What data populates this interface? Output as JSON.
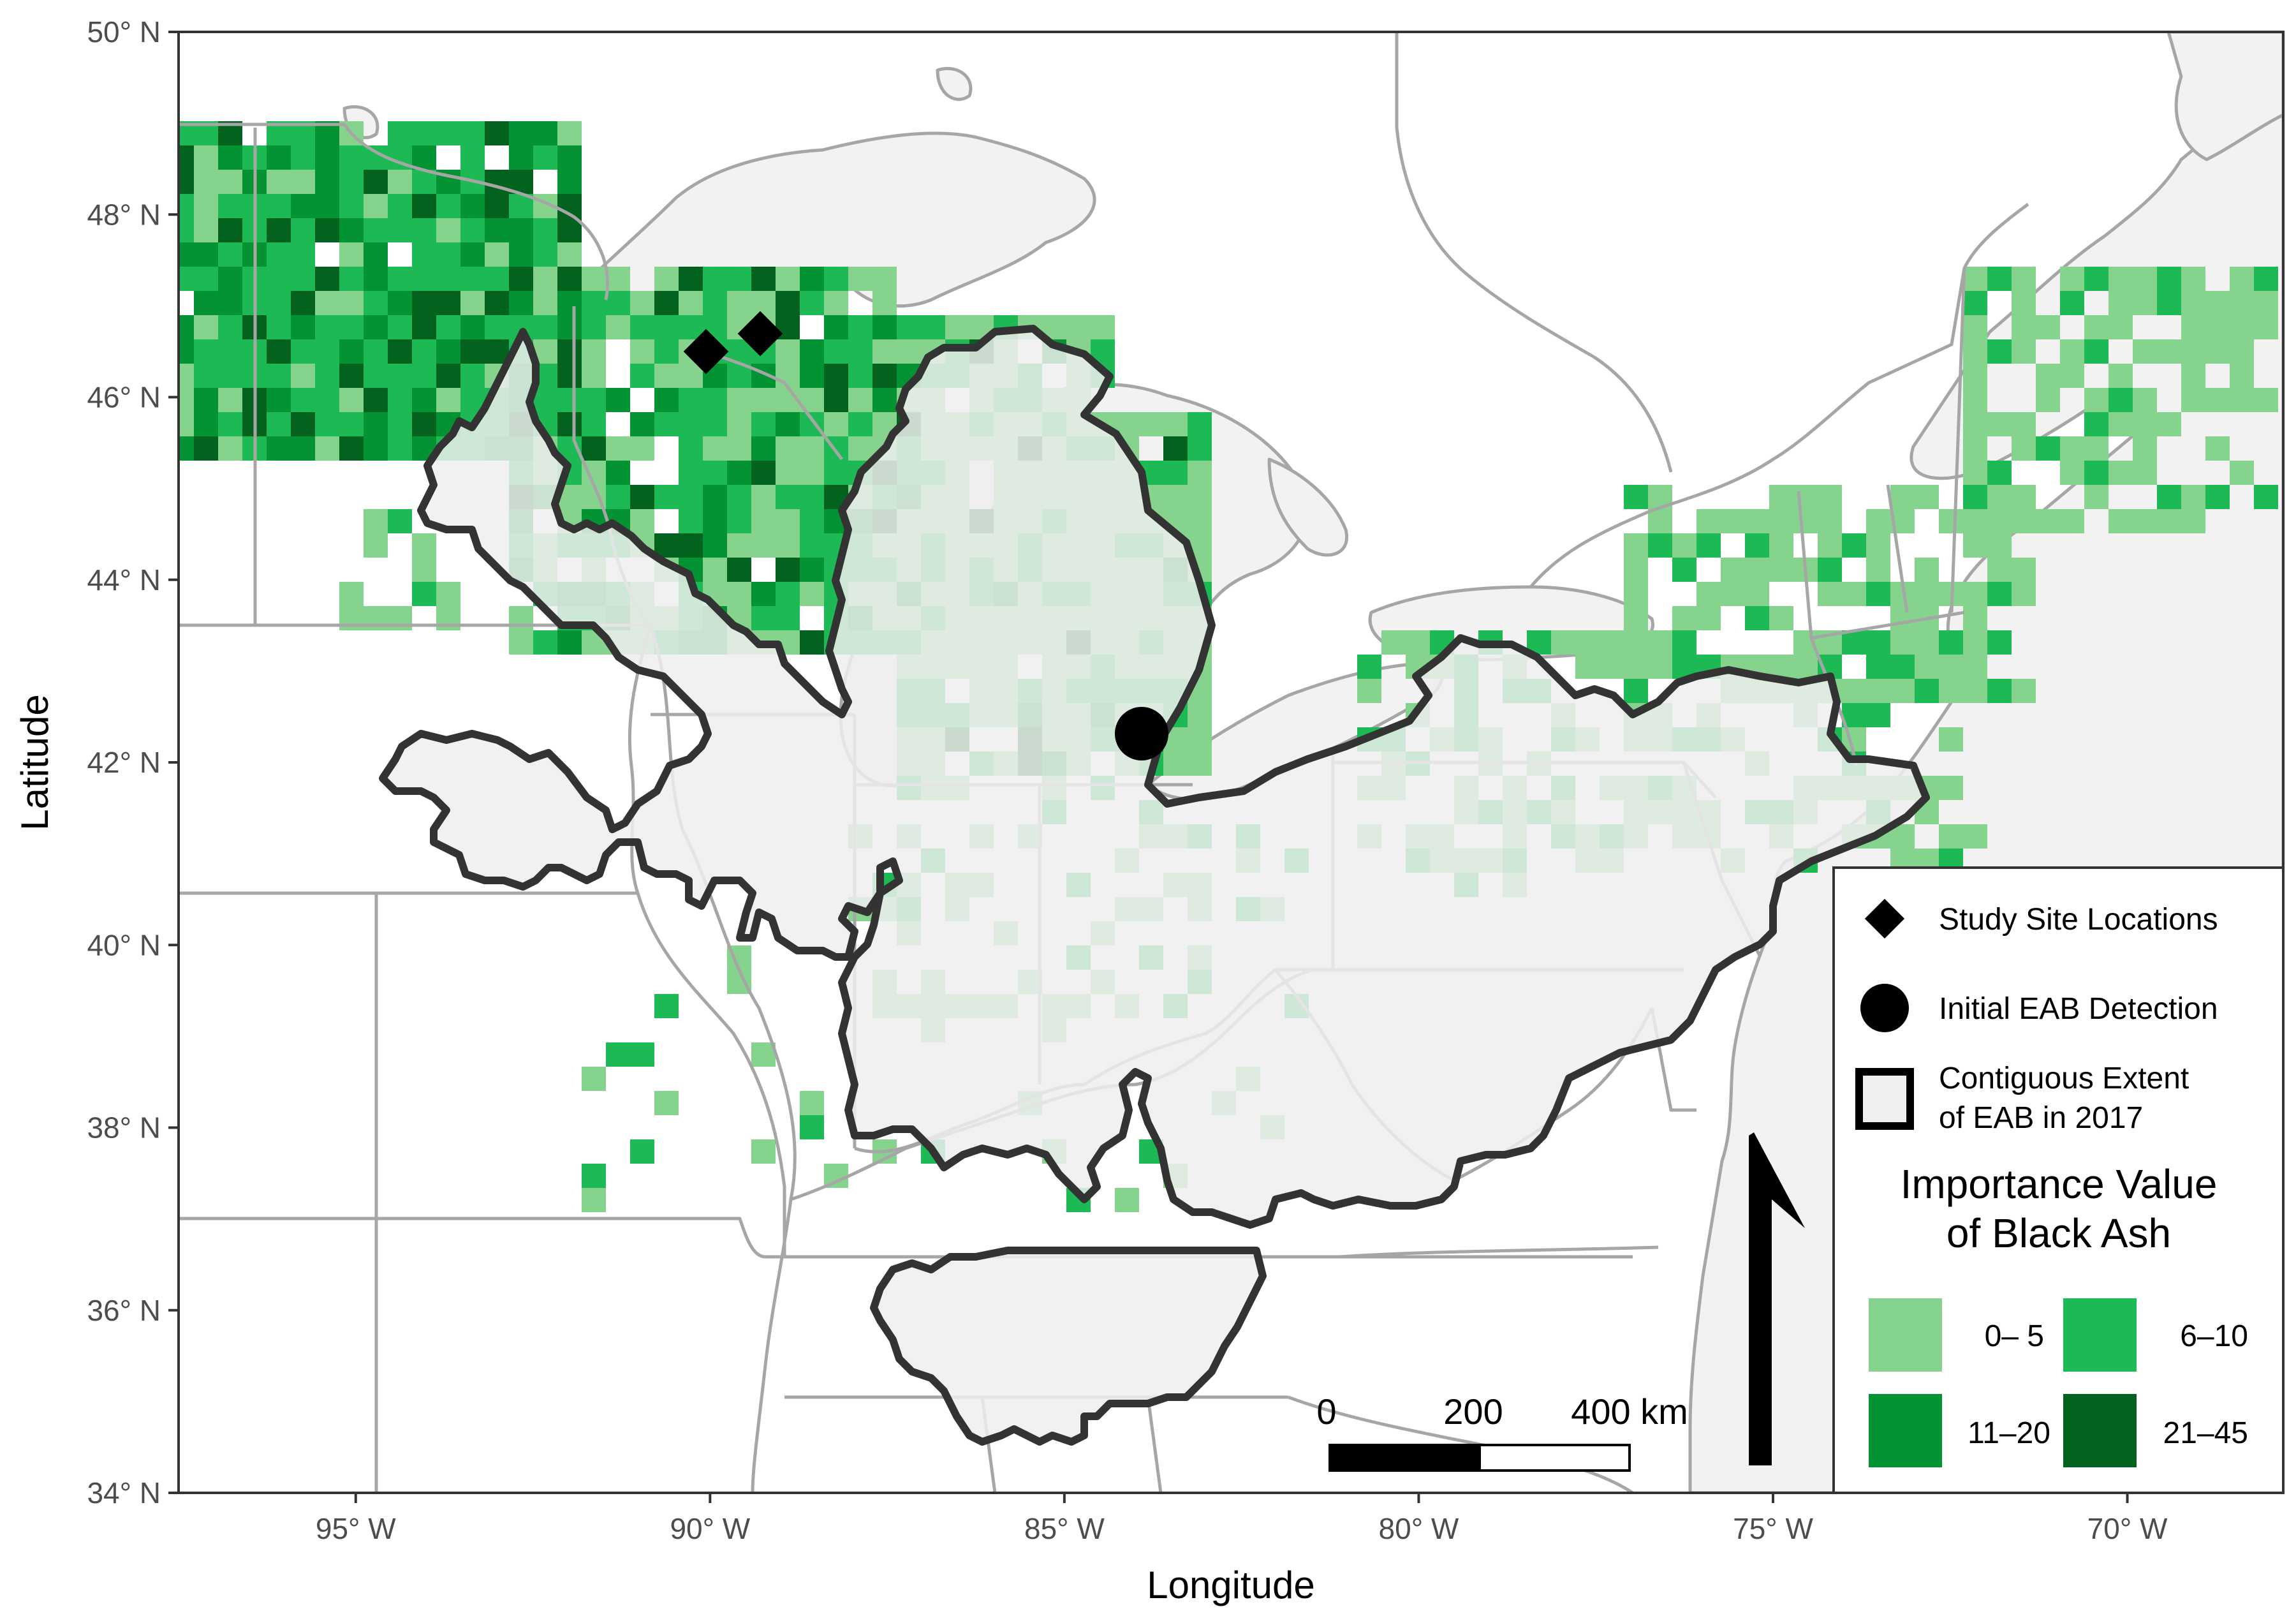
{
  "axes": {
    "x_title": "Longitude",
    "y_title": "Latitude",
    "x_ticks": [
      "95° W",
      "90° W",
      "85° W",
      "80° W",
      "75° W",
      "70° W"
    ],
    "y_ticks": [
      "50° N",
      "48° N",
      "46° N",
      "44° N",
      "42° N",
      "40° N",
      "38° N",
      "36° N",
      "34° N"
    ],
    "x_values": [
      -95,
      -90,
      -85,
      -80,
      -75,
      -70
    ],
    "y_values": [
      50,
      48,
      46,
      44,
      42,
      40,
      38,
      36,
      34
    ],
    "xlim": [
      -97.5,
      -67.8
    ],
    "ylim": [
      34,
      50
    ]
  },
  "legend": {
    "study_sites_label": "Study Site Locations",
    "initial_detection_label": "Initial EAB Detection",
    "extent_label_line1": "Contiguous Extent",
    "extent_label_line2": "of EAB in 2017",
    "importance_title_line1": "Importance Value",
    "importance_title_line2": "of Black Ash",
    "classes": [
      {
        "label": "0– 5",
        "color": "#86d38e"
      },
      {
        "label": "6–10",
        "color": "#1db954"
      },
      {
        "label": "11–20",
        "color": "#039333"
      },
      {
        "label": "21–45",
        "color": "#03631e"
      }
    ]
  },
  "scale_bar": {
    "labels": [
      "0",
      "200",
      "400 km"
    ]
  },
  "points": {
    "study_sites": [
      {
        "lon": -89.65,
        "lat": 46.42
      },
      {
        "lon": -88.85,
        "lat": 46.67
      }
    ],
    "initial_detection": {
      "lon": -83.3,
      "lat": 42.3
    }
  },
  "colors": {
    "background": "#ffffff",
    "land": "#ffffff",
    "water": "#f2f2f2",
    "boundary": "#a6a6a6",
    "eab_fill": "#efefef",
    "eab_outline": "#333333"
  }
}
